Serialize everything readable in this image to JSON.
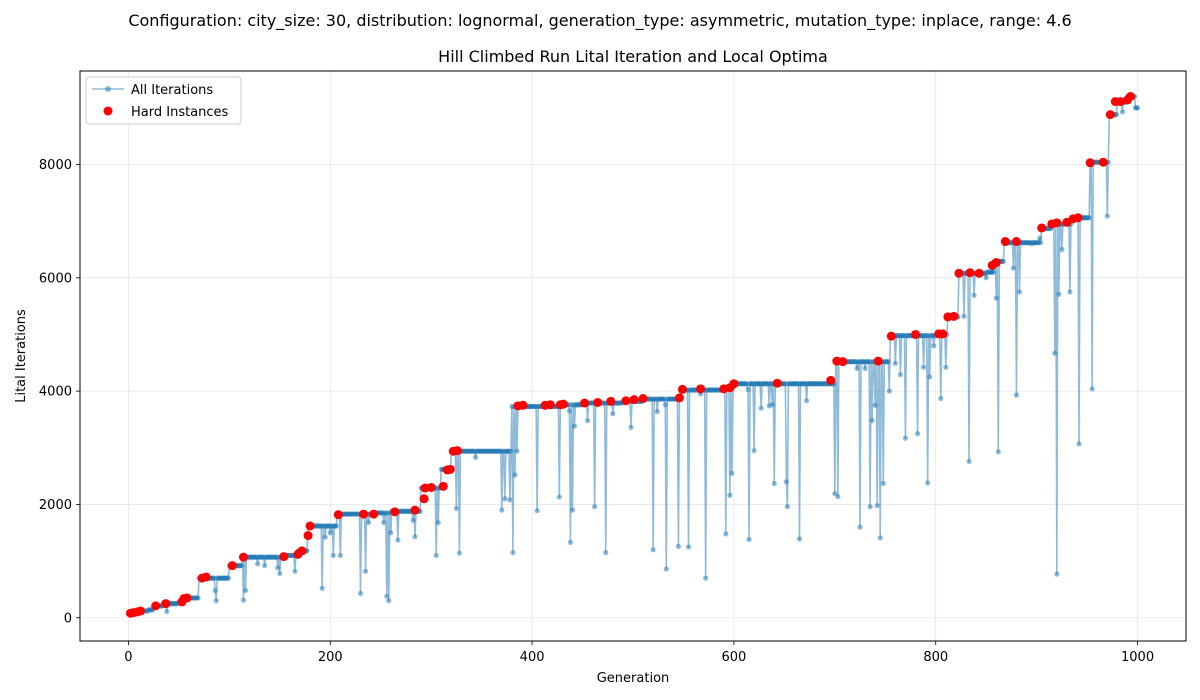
{
  "suptitle": "Configuration: city_size: 30, distribution: lognormal, generation_type: asymmetric, mutation_type: inplace, range: 4.6",
  "chart_data": {
    "type": "line",
    "title": "Hill Climbed Run Lital Iteration and Local Optima",
    "xlabel": "Generation",
    "ylabel": "Lital Iterations",
    "xlim": [
      -48,
      1048
    ],
    "ylim": [
      -410,
      9650
    ],
    "xticks": [
      0,
      200,
      400,
      600,
      800,
      1000
    ],
    "yticks": [
      0,
      2000,
      4000,
      6000,
      8000
    ],
    "grid": true,
    "legend_position": "upper-left",
    "colors": {
      "all_iterations": "#1f77b4",
      "hard_instances": "#ff0000"
    },
    "series": [
      {
        "name": "All Iterations",
        "kind": "line-with-markers",
        "plateaus": [
          [
            0,
            80
          ],
          [
            5,
            95
          ],
          [
            10,
            120
          ],
          [
            20,
            140
          ],
          [
            25,
            210
          ],
          [
            35,
            250
          ],
          [
            50,
            280
          ],
          [
            55,
            350
          ],
          [
            70,
            700
          ],
          [
            100,
            920
          ],
          [
            113,
            1070
          ],
          [
            155,
            1100
          ],
          [
            168,
            1180
          ],
          [
            178,
            1620
          ],
          [
            207,
            1830
          ],
          [
            245,
            1850
          ],
          [
            260,
            1880
          ],
          [
            290,
            2290
          ],
          [
            310,
            2620
          ],
          [
            320,
            2940
          ],
          [
            380,
            3730
          ],
          [
            430,
            3760
          ],
          [
            450,
            3790
          ],
          [
            490,
            3820
          ],
          [
            510,
            3860
          ],
          [
            548,
            4020
          ],
          [
            590,
            4060
          ],
          [
            600,
            4130
          ],
          [
            700,
            4520
          ],
          [
            755,
            4980
          ],
          [
            800,
            5000
          ],
          [
            812,
            5310
          ],
          [
            823,
            6080
          ],
          [
            850,
            6100
          ],
          [
            858,
            6290
          ],
          [
            868,
            6620
          ],
          [
            905,
            6870
          ],
          [
            915,
            6950
          ],
          [
            935,
            7060
          ],
          [
            953,
            8040
          ],
          [
            972,
            8880
          ],
          [
            980,
            9100
          ],
          [
            990,
            9200
          ],
          [
            998,
            9000
          ]
        ],
        "dips": [
          [
            38,
            110
          ],
          [
            86,
            480
          ],
          [
            87,
            300
          ],
          [
            114,
            310
          ],
          [
            116,
            480
          ],
          [
            128,
            950
          ],
          [
            135,
            920
          ],
          [
            148,
            880
          ],
          [
            150,
            780
          ],
          [
            165,
            820
          ],
          [
            192,
            520
          ],
          [
            195,
            1420
          ],
          [
            200,
            1500
          ],
          [
            203,
            1100
          ],
          [
            210,
            1100
          ],
          [
            230,
            430
          ],
          [
            235,
            820
          ],
          [
            238,
            1680
          ],
          [
            253,
            1680
          ],
          [
            256,
            380
          ],
          [
            258,
            300
          ],
          [
            260,
            1500
          ],
          [
            267,
            1370
          ],
          [
            282,
            1720
          ],
          [
            284,
            1430
          ],
          [
            305,
            1100
          ],
          [
            307,
            1680
          ],
          [
            325,
            1930
          ],
          [
            328,
            1140
          ],
          [
            344,
            2830
          ],
          [
            370,
            1900
          ],
          [
            373,
            2100
          ],
          [
            378,
            2080
          ],
          [
            381,
            1150
          ],
          [
            383,
            2520
          ],
          [
            385,
            2940
          ],
          [
            405,
            1890
          ],
          [
            427,
            2130
          ],
          [
            437,
            3650
          ],
          [
            438,
            1330
          ],
          [
            440,
            1900
          ],
          [
            442,
            3380
          ],
          [
            455,
            3480
          ],
          [
            462,
            1960
          ],
          [
            473,
            1150
          ],
          [
            480,
            3600
          ],
          [
            498,
            3360
          ],
          [
            520,
            1200
          ],
          [
            524,
            3640
          ],
          [
            532,
            3760
          ],
          [
            533,
            860
          ],
          [
            545,
            1260
          ],
          [
            555,
            1250
          ],
          [
            567,
            3950
          ],
          [
            572,
            700
          ],
          [
            592,
            1480
          ],
          [
            596,
            2160
          ],
          [
            598,
            2550
          ],
          [
            614,
            4030
          ],
          [
            615,
            1380
          ],
          [
            620,
            2950
          ],
          [
            627,
            3700
          ],
          [
            635,
            3740
          ],
          [
            638,
            3760
          ],
          [
            640,
            2370
          ],
          [
            652,
            2400
          ],
          [
            653,
            1960
          ],
          [
            665,
            1390
          ],
          [
            672,
            3830
          ],
          [
            700,
            2190
          ],
          [
            703,
            2140
          ],
          [
            722,
            4400
          ],
          [
            725,
            1600
          ],
          [
            730,
            4400
          ],
          [
            735,
            1960
          ],
          [
            737,
            3480
          ],
          [
            740,
            3750
          ],
          [
            742,
            1980
          ],
          [
            745,
            1410
          ],
          [
            748,
            2370
          ],
          [
            754,
            4000
          ],
          [
            760,
            4490
          ],
          [
            765,
            4290
          ],
          [
            770,
            3170
          ],
          [
            782,
            3250
          ],
          [
            788,
            4420
          ],
          [
            792,
            2380
          ],
          [
            794,
            4250
          ],
          [
            798,
            4800
          ],
          [
            805,
            3870
          ],
          [
            810,
            4420
          ],
          [
            828,
            5320
          ],
          [
            833,
            2760
          ],
          [
            838,
            5690
          ],
          [
            850,
            6000
          ],
          [
            860,
            5640
          ],
          [
            862,
            2930
          ],
          [
            877,
            6170
          ],
          [
            880,
            3930
          ],
          [
            883,
            5750
          ],
          [
            895,
            6600
          ],
          [
            903,
            6700
          ],
          [
            918,
            4670
          ],
          [
            920,
            770
          ],
          [
            922,
            5710
          ],
          [
            925,
            6500
          ],
          [
            933,
            5750
          ],
          [
            942,
            3070
          ],
          [
            955,
            4040
          ],
          [
            970,
            7090
          ],
          [
            985,
            8930
          ]
        ]
      },
      {
        "name": "Hard Instances",
        "kind": "scatter",
        "points": [
          [
            2,
            80
          ],
          [
            5,
            90
          ],
          [
            9,
            105
          ],
          [
            12,
            120
          ],
          [
            27,
            210
          ],
          [
            37,
            250
          ],
          [
            53,
            280
          ],
          [
            55,
            340
          ],
          [
            58,
            350
          ],
          [
            73,
            700
          ],
          [
            77,
            720
          ],
          [
            103,
            920
          ],
          [
            114,
            1070
          ],
          [
            154,
            1080
          ],
          [
            168,
            1120
          ],
          [
            172,
            1180
          ],
          [
            178,
            1450
          ],
          [
            180,
            1620
          ],
          [
            208,
            1820
          ],
          [
            233,
            1830
          ],
          [
            243,
            1830
          ],
          [
            264,
            1870
          ],
          [
            284,
            1900
          ],
          [
            293,
            2100
          ],
          [
            294,
            2290
          ],
          [
            300,
            2300
          ],
          [
            312,
            2320
          ],
          [
            316,
            2610
          ],
          [
            319,
            2620
          ],
          [
            322,
            2940
          ],
          [
            326,
            2950
          ],
          [
            386,
            3740
          ],
          [
            391,
            3750
          ],
          [
            413,
            3750
          ],
          [
            418,
            3760
          ],
          [
            428,
            3760
          ],
          [
            431,
            3770
          ],
          [
            452,
            3790
          ],
          [
            465,
            3800
          ],
          [
            478,
            3820
          ],
          [
            493,
            3830
          ],
          [
            501,
            3850
          ],
          [
            510,
            3870
          ],
          [
            546,
            3880
          ],
          [
            549,
            4030
          ],
          [
            567,
            4040
          ],
          [
            590,
            4040
          ],
          [
            596,
            4060
          ],
          [
            600,
            4130
          ],
          [
            643,
            4140
          ],
          [
            696,
            4190
          ],
          [
            702,
            4530
          ],
          [
            708,
            4520
          ],
          [
            743,
            4530
          ],
          [
            756,
            4970
          ],
          [
            780,
            5000
          ],
          [
            803,
            5010
          ],
          [
            807,
            5010
          ],
          [
            812,
            5310
          ],
          [
            818,
            5320
          ],
          [
            823,
            6080
          ],
          [
            834,
            6090
          ],
          [
            843,
            6080
          ],
          [
            856,
            6220
          ],
          [
            860,
            6270
          ],
          [
            869,
            6640
          ],
          [
            880,
            6640
          ],
          [
            905,
            6880
          ],
          [
            915,
            6950
          ],
          [
            920,
            6970
          ],
          [
            930,
            6980
          ],
          [
            936,
            7040
          ],
          [
            941,
            7060
          ],
          [
            953,
            8030
          ],
          [
            966,
            8040
          ],
          [
            973,
            8880
          ],
          [
            978,
            9110
          ],
          [
            983,
            9110
          ],
          [
            990,
            9140
          ],
          [
            993,
            9200
          ]
        ]
      }
    ]
  }
}
